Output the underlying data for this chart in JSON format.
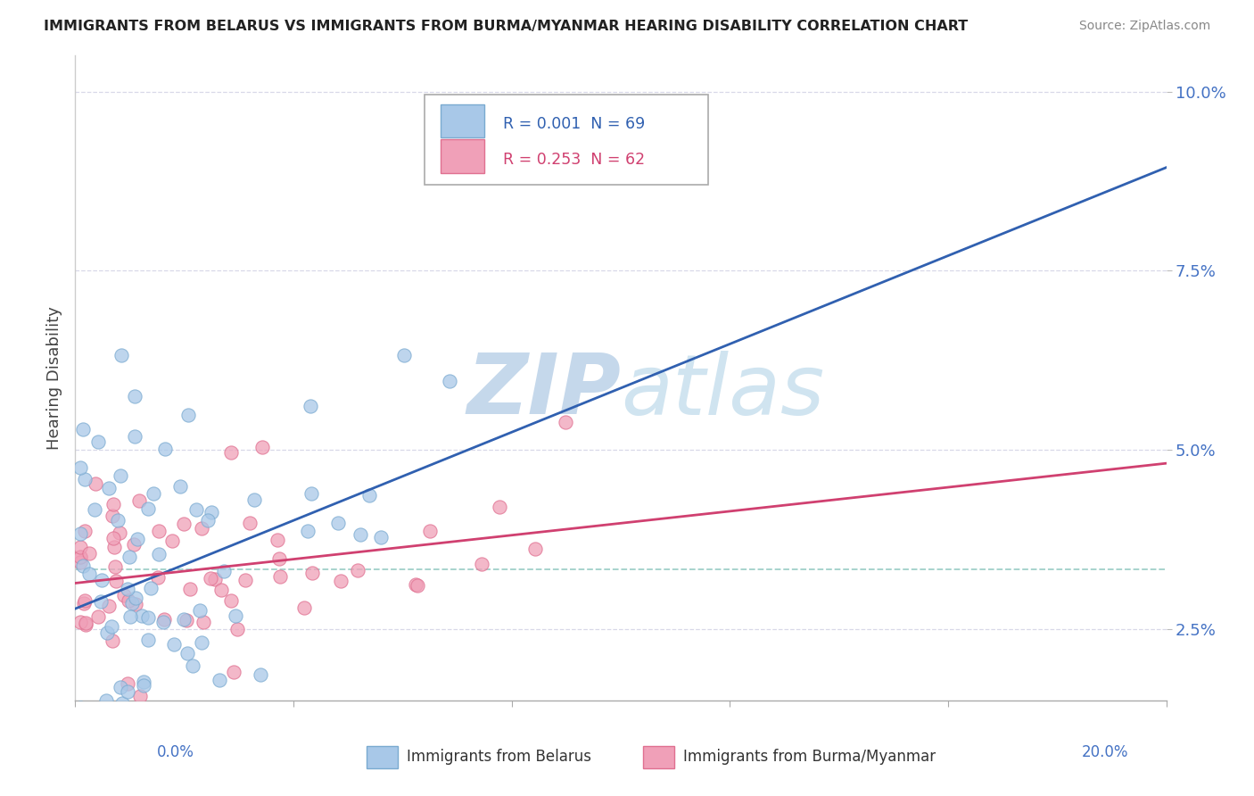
{
  "title": "IMMIGRANTS FROM BELARUS VS IMMIGRANTS FROM BURMA/MYANMAR HEARING DISABILITY CORRELATION CHART",
  "source": "Source: ZipAtlas.com",
  "ylabel": "Hearing Disability",
  "blue_color": "#a8c8e8",
  "pink_color": "#f0a0b8",
  "blue_edge_color": "#7aaad0",
  "pink_edge_color": "#e07090",
  "blue_line_color": "#3060b0",
  "pink_line_color": "#d04070",
  "dashed_line_color": "#90c8c0",
  "watermark_color_zip": "#b0c8e0",
  "watermark_color_atlas": "#c0d8e8",
  "background_color": "#ffffff",
  "grid_color": "#d8d8e8",
  "xlim": [
    0.0,
    0.2
  ],
  "ylim": [
    0.015,
    0.105
  ],
  "ytick_vals": [
    0.025,
    0.05,
    0.075,
    0.1
  ],
  "ytick_labels": [
    "2.5%",
    "5.0%",
    "7.5%",
    "10.0%"
  ],
  "legend_r1": "R = 0.001",
  "legend_n1": "N = 69",
  "legend_r2": "R = 0.253",
  "legend_n2": "N = 62",
  "label1": "Immigrants from Belarus",
  "label2": "Immigrants from Burma/Myanmar"
}
